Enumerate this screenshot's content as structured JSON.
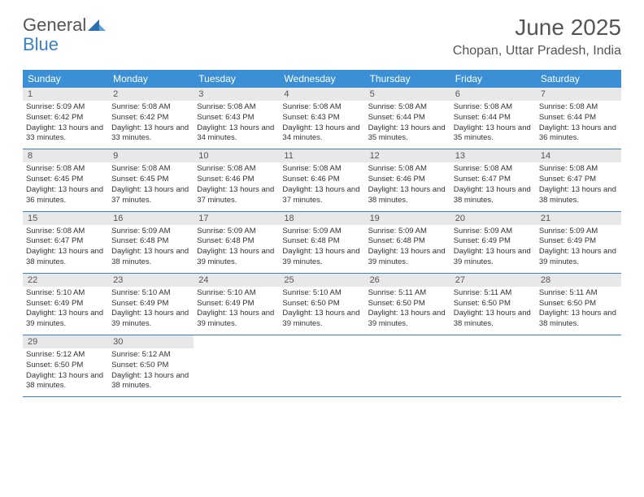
{
  "logo": {
    "word1": "General",
    "word2": "Blue"
  },
  "title": "June 2025",
  "location": "Chopan, Uttar Pradesh, India",
  "colors": {
    "header_bg": "#3b8fd4",
    "header_text": "#ffffff",
    "daynum_bg": "#e8e8e8",
    "divider": "#3b7fc4",
    "title_color": "#555555",
    "text_color": "#333333",
    "logo_accent": "#3b7fc4"
  },
  "font": {
    "title_size": 28,
    "location_size": 16,
    "header_size": 12,
    "daynum_size": 11,
    "detail_size": 9.5
  },
  "day_names": [
    "Sunday",
    "Monday",
    "Tuesday",
    "Wednesday",
    "Thursday",
    "Friday",
    "Saturday"
  ],
  "weeks": [
    [
      {
        "n": "1",
        "sr": "5:09 AM",
        "ss": "6:42 PM",
        "dl": "13 hours and 33 minutes."
      },
      {
        "n": "2",
        "sr": "5:08 AM",
        "ss": "6:42 PM",
        "dl": "13 hours and 33 minutes."
      },
      {
        "n": "3",
        "sr": "5:08 AM",
        "ss": "6:43 PM",
        "dl": "13 hours and 34 minutes."
      },
      {
        "n": "4",
        "sr": "5:08 AM",
        "ss": "6:43 PM",
        "dl": "13 hours and 34 minutes."
      },
      {
        "n": "5",
        "sr": "5:08 AM",
        "ss": "6:44 PM",
        "dl": "13 hours and 35 minutes."
      },
      {
        "n": "6",
        "sr": "5:08 AM",
        "ss": "6:44 PM",
        "dl": "13 hours and 35 minutes."
      },
      {
        "n": "7",
        "sr": "5:08 AM",
        "ss": "6:44 PM",
        "dl": "13 hours and 36 minutes."
      }
    ],
    [
      {
        "n": "8",
        "sr": "5:08 AM",
        "ss": "6:45 PM",
        "dl": "13 hours and 36 minutes."
      },
      {
        "n": "9",
        "sr": "5:08 AM",
        "ss": "6:45 PM",
        "dl": "13 hours and 37 minutes."
      },
      {
        "n": "10",
        "sr": "5:08 AM",
        "ss": "6:46 PM",
        "dl": "13 hours and 37 minutes."
      },
      {
        "n": "11",
        "sr": "5:08 AM",
        "ss": "6:46 PM",
        "dl": "13 hours and 37 minutes."
      },
      {
        "n": "12",
        "sr": "5:08 AM",
        "ss": "6:46 PM",
        "dl": "13 hours and 38 minutes."
      },
      {
        "n": "13",
        "sr": "5:08 AM",
        "ss": "6:47 PM",
        "dl": "13 hours and 38 minutes."
      },
      {
        "n": "14",
        "sr": "5:08 AM",
        "ss": "6:47 PM",
        "dl": "13 hours and 38 minutes."
      }
    ],
    [
      {
        "n": "15",
        "sr": "5:08 AM",
        "ss": "6:47 PM",
        "dl": "13 hours and 38 minutes."
      },
      {
        "n": "16",
        "sr": "5:09 AM",
        "ss": "6:48 PM",
        "dl": "13 hours and 38 minutes."
      },
      {
        "n": "17",
        "sr": "5:09 AM",
        "ss": "6:48 PM",
        "dl": "13 hours and 39 minutes."
      },
      {
        "n": "18",
        "sr": "5:09 AM",
        "ss": "6:48 PM",
        "dl": "13 hours and 39 minutes."
      },
      {
        "n": "19",
        "sr": "5:09 AM",
        "ss": "6:48 PM",
        "dl": "13 hours and 39 minutes."
      },
      {
        "n": "20",
        "sr": "5:09 AM",
        "ss": "6:49 PM",
        "dl": "13 hours and 39 minutes."
      },
      {
        "n": "21",
        "sr": "5:09 AM",
        "ss": "6:49 PM",
        "dl": "13 hours and 39 minutes."
      }
    ],
    [
      {
        "n": "22",
        "sr": "5:10 AM",
        "ss": "6:49 PM",
        "dl": "13 hours and 39 minutes."
      },
      {
        "n": "23",
        "sr": "5:10 AM",
        "ss": "6:49 PM",
        "dl": "13 hours and 39 minutes."
      },
      {
        "n": "24",
        "sr": "5:10 AM",
        "ss": "6:49 PM",
        "dl": "13 hours and 39 minutes."
      },
      {
        "n": "25",
        "sr": "5:10 AM",
        "ss": "6:50 PM",
        "dl": "13 hours and 39 minutes."
      },
      {
        "n": "26",
        "sr": "5:11 AM",
        "ss": "6:50 PM",
        "dl": "13 hours and 39 minutes."
      },
      {
        "n": "27",
        "sr": "5:11 AM",
        "ss": "6:50 PM",
        "dl": "13 hours and 38 minutes."
      },
      {
        "n": "28",
        "sr": "5:11 AM",
        "ss": "6:50 PM",
        "dl": "13 hours and 38 minutes."
      }
    ],
    [
      {
        "n": "29",
        "sr": "5:12 AM",
        "ss": "6:50 PM",
        "dl": "13 hours and 38 minutes."
      },
      {
        "n": "30",
        "sr": "5:12 AM",
        "ss": "6:50 PM",
        "dl": "13 hours and 38 minutes."
      },
      null,
      null,
      null,
      null,
      null
    ]
  ],
  "labels": {
    "sunrise": "Sunrise: ",
    "sunset": "Sunset: ",
    "daylight": "Daylight: "
  }
}
